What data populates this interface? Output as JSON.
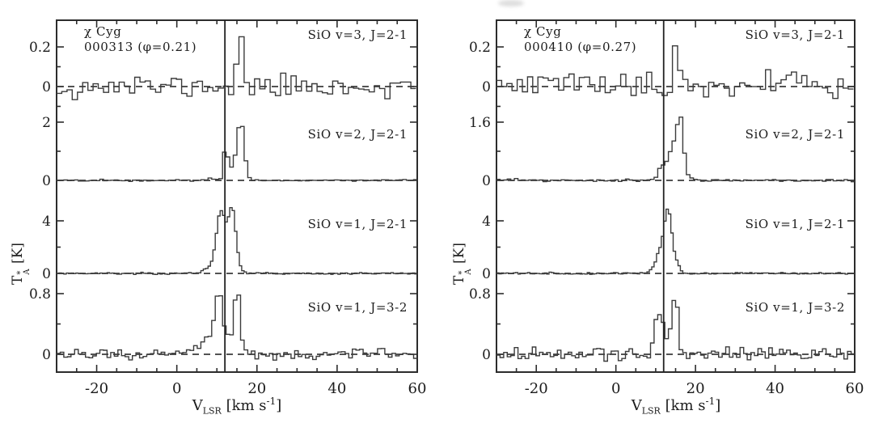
{
  "chart_data": {
    "type": "line",
    "description": "Histogram-style single-dish spectra of SiO maser transitions toward chi Cyg at two epochs; four stacked transitions per epoch, dashed zero-level baselines, solid vertical line marks the stellar velocity.",
    "x_axis_title": "V_LSR [km s^-1]",
    "y_axis_title": "T_A* [K]",
    "marker_velocity_kms": 12,
    "x": {
      "range": [
        -30,
        60
      ],
      "major_ticks": [
        -20,
        0,
        20,
        40,
        60
      ],
      "minor_tick_step": 5,
      "label_parts": {
        "name": "V",
        "sub": "LSR",
        "unit_open": "[km s",
        "sup": "-1",
        "unit_close": "]"
      }
    },
    "y": {
      "label_parts": {
        "name": "T",
        "sup": "*",
        "sub": "A",
        "unit": "[K]"
      }
    },
    "panels": [
      {
        "source": "χ Cyg",
        "epoch_label": "000313 (φ=0.21)",
        "epoch": "000313",
        "phase": 0.21,
        "spectra": [
          {
            "label": "SiO v=3, J=2-1",
            "top_tick": 0.2,
            "y_ticks": [
              {
                "value": 0.2,
                "label": "0.2"
              },
              {
                "value": 0.1
              },
              {
                "value": 0,
                "label": "0"
              },
              {
                "value": -0.1
              }
            ],
            "channel_width_kms": 1.3,
            "noise_rms_K": 0.03,
            "seed": 11,
            "peaks": [
              {
                "center_kms": 16.2,
                "amplitude_K": 0.2,
                "sigma_kms": 0.7
              },
              {
                "center_kms": 15.0,
                "amplitude_K": 0.06,
                "sigma_kms": 0.6
              }
            ]
          },
          {
            "label": "SiO v=2, J=2-1",
            "top_tick": 2,
            "y_ticks": [
              {
                "value": 2,
                "label": "2"
              },
              {
                "value": 1
              },
              {
                "value": 0,
                "label": "0"
              }
            ],
            "channel_width_kms": 0.9,
            "noise_rms_K": 0.012,
            "seed": 22,
            "peaks": [
              {
                "center_kms": 12.2,
                "amplitude_K": 1.15,
                "sigma_kms": 0.45
              },
              {
                "center_kms": 16.0,
                "amplitude_K": 1.85,
                "sigma_kms": 0.85
              },
              {
                "center_kms": 14.3,
                "amplitude_K": 0.45,
                "sigma_kms": 1.5
              },
              {
                "center_kms": 8.6,
                "amplitude_K": 0.06,
                "sigma_kms": 1.2
              }
            ]
          },
          {
            "label": "SiO v=1, J=2-1",
            "top_tick": 4,
            "y_ticks": [
              {
                "value": 4,
                "label": "4"
              },
              {
                "value": 2
              },
              {
                "value": 0,
                "label": "0"
              }
            ],
            "channel_width_kms": 0.6,
            "noise_rms_K": 0.035,
            "seed": 33,
            "peaks": [
              {
                "center_kms": 11.0,
                "amplitude_K": 4.1,
                "sigma_kms": 1.1
              },
              {
                "center_kms": 13.8,
                "amplitude_K": 4.3,
                "sigma_kms": 0.95
              },
              {
                "center_kms": 12.4,
                "amplitude_K": 0.7,
                "sigma_kms": 2.2
              },
              {
                "center_kms": 8.2,
                "amplitude_K": 0.35,
                "sigma_kms": 1.6
              }
            ]
          },
          {
            "label": "SiO v=1, J=3-2",
            "top_tick": 0.8,
            "y_ticks": [
              {
                "value": 0.8,
                "label": "0.8"
              },
              {
                "value": 0.4
              },
              {
                "value": 0,
                "label": "0"
              }
            ],
            "channel_width_kms": 0.9,
            "noise_rms_K": 0.04,
            "seed": 44,
            "peaks": [
              {
                "center_kms": 10.6,
                "amplitude_K": 0.75,
                "sigma_kms": 0.9
              },
              {
                "center_kms": 15.1,
                "amplitude_K": 0.86,
                "sigma_kms": 0.7
              },
              {
                "center_kms": 12.8,
                "amplitude_K": 0.2,
                "sigma_kms": 1.0
              },
              {
                "center_kms": 8.8,
                "amplitude_K": 0.18,
                "sigma_kms": 1.2
              },
              {
                "center_kms": 6.0,
                "amplitude_K": 0.1,
                "sigma_kms": 2.5
              }
            ]
          }
        ]
      },
      {
        "source": "χ Cyg",
        "epoch_label": "000410 (φ=0.27)",
        "epoch": "000410",
        "phase": 0.27,
        "spectra": [
          {
            "label": "SiO v=3, J=2-1",
            "top_tick": 0.2,
            "y_ticks": [
              {
                "value": 0.2,
                "label": "0.2"
              },
              {
                "value": 0.1
              },
              {
                "value": 0,
                "label": "0"
              },
              {
                "value": -0.1
              }
            ],
            "channel_width_kms": 1.3,
            "noise_rms_K": 0.035,
            "seed": 55,
            "peaks": [
              {
                "center_kms": 15.2,
                "amplitude_K": 0.18,
                "sigma_kms": 0.8
              },
              {
                "center_kms": 14.2,
                "amplitude_K": 0.05,
                "sigma_kms": 0.7
              }
            ]
          },
          {
            "label": "SiO v=2, J=2-1",
            "top_tick": 1.6,
            "y_ticks": [
              {
                "value": 1.6,
                "label": "1.6"
              },
              {
                "value": 0.8
              },
              {
                "value": 0,
                "label": "0"
              }
            ],
            "channel_width_kms": 0.9,
            "noise_rms_K": 0.015,
            "seed": 66,
            "peaks": [
              {
                "center_kms": 16.2,
                "amplitude_K": 1.55,
                "sigma_kms": 0.8
              },
              {
                "center_kms": 14.6,
                "amplitude_K": 0.75,
                "sigma_kms": 1.0
              },
              {
                "center_kms": 12.9,
                "amplitude_K": 0.4,
                "sigma_kms": 1.1
              },
              {
                "center_kms": 11.0,
                "amplitude_K": 0.22,
                "sigma_kms": 0.8
              },
              {
                "center_kms": 18.3,
                "amplitude_K": 0.1,
                "sigma_kms": 1.2
              }
            ]
          },
          {
            "label": "SiO v=1, J=2-1",
            "top_tick": 4,
            "y_ticks": [
              {
                "value": 4,
                "label": "4"
              },
              {
                "value": 2
              },
              {
                "value": 0,
                "label": "0"
              }
            ],
            "channel_width_kms": 0.6,
            "noise_rms_K": 0.035,
            "seed": 77,
            "peaks": [
              {
                "center_kms": 13.2,
                "amplitude_K": 4.4,
                "sigma_kms": 0.9
              },
              {
                "center_kms": 11.5,
                "amplitude_K": 1.6,
                "sigma_kms": 1.1
              },
              {
                "center_kms": 15.2,
                "amplitude_K": 0.8,
                "sigma_kms": 0.8
              },
              {
                "center_kms": 10.0,
                "amplitude_K": 0.35,
                "sigma_kms": 1.2
              }
            ]
          },
          {
            "label": "SiO v=1, J=3-2",
            "top_tick": 0.8,
            "y_ticks": [
              {
                "value": 0.8,
                "label": "0.8"
              },
              {
                "value": 0.4
              },
              {
                "value": 0,
                "label": "0"
              }
            ],
            "channel_width_kms": 0.9,
            "noise_rms_K": 0.045,
            "seed": 88,
            "peaks": [
              {
                "center_kms": 10.7,
                "amplitude_K": 0.52,
                "sigma_kms": 1.1
              },
              {
                "center_kms": 15.0,
                "amplitude_K": 0.82,
                "sigma_kms": 0.7
              },
              {
                "center_kms": 13.0,
                "amplitude_K": 0.18,
                "sigma_kms": 1.2
              }
            ]
          }
        ]
      }
    ],
    "colors": {
      "line": "#3b3b3b",
      "axis": "#2c2c2c",
      "text": "#1c1c1c",
      "background": "#ffffff"
    }
  }
}
